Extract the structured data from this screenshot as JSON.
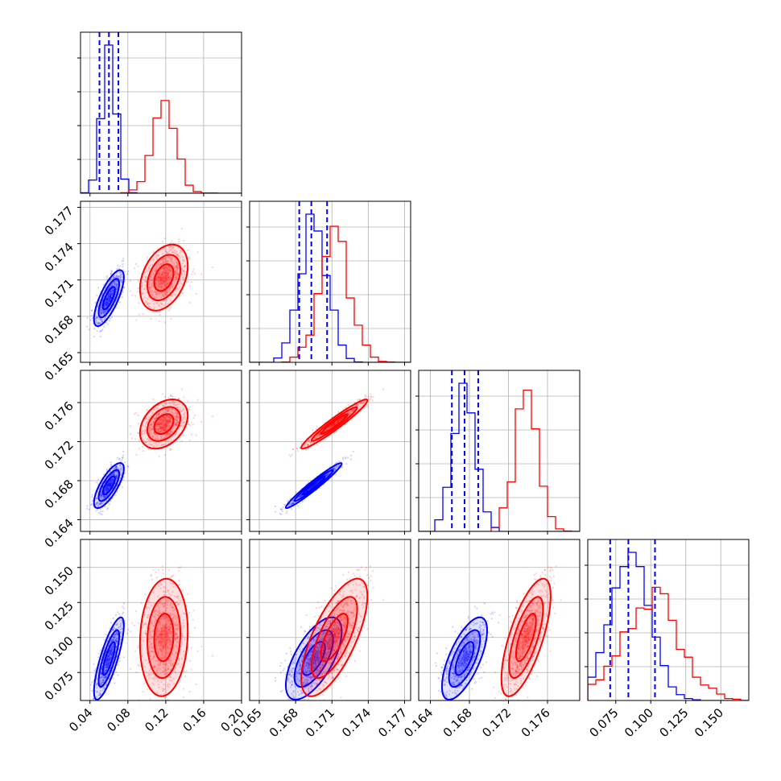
{
  "colors": {
    "series_a": "#0000ff",
    "series_b": "#ff0000",
    "grid": "#b0b0b0",
    "axes": "#000000"
  },
  "chart_data": {
    "type": "corner",
    "grid": true,
    "parameters": [
      {
        "range": [
          0.03,
          0.2
        ],
        "ticks": [
          0.04,
          0.08,
          0.12,
          0.16,
          0.2
        ],
        "tick_labels": [
          "0.04",
          "0.08",
          "0.12",
          "0.16",
          "0.20"
        ]
      },
      {
        "range": [
          0.1642,
          0.1775
        ],
        "ticks": [
          0.165,
          0.168,
          0.171,
          0.174,
          0.177
        ],
        "tick_labels": [
          "0.165",
          "0.168",
          "0.171",
          "0.174",
          "0.177"
        ]
      },
      {
        "range": [
          0.1628,
          0.1793
        ],
        "ticks": [
          0.164,
          0.168,
          0.172,
          0.176
        ],
        "tick_labels": [
          "0.164",
          "0.168",
          "0.172",
          "0.176"
        ]
      },
      {
        "range": [
          0.055,
          0.17
        ],
        "ticks": [
          0.075,
          0.1,
          0.125,
          0.15
        ],
        "tick_labels": [
          "0.075",
          "0.100",
          "0.125",
          "0.150"
        ]
      }
    ],
    "series": [
      {
        "color": "#0000ff",
        "mean": [
          0.06,
          0.1695,
          0.1675,
          0.085
        ],
        "std": [
          0.0075,
          0.0011,
          0.0011,
          0.014
        ],
        "corr": [
          [
            1,
            0.75,
            0.75,
            0.8
          ],
          [
            0.75,
            1,
            0.97,
            0.65
          ],
          [
            0.75,
            0.97,
            1,
            0.68
          ],
          [
            0.8,
            0.65,
            0.68,
            1
          ]
        ],
        "quantiles": [
          [
            0.05,
            0.06,
            0.07
          ],
          [
            0.1683,
            0.1693,
            0.1706
          ],
          [
            0.1662,
            0.1675,
            0.1689
          ],
          [
            0.071,
            0.084,
            0.103
          ]
        ]
      },
      {
        "color": "#ff0000",
        "mean": [
          0.118,
          0.1712,
          0.1738,
          0.1
        ],
        "std": [
          0.012,
          0.0013,
          0.0012,
          0.02
        ],
        "corr": [
          [
            1,
            0.35,
            0.35,
            0.1
          ],
          [
            0.35,
            1,
            0.96,
            0.7
          ],
          [
            0.35,
            0.96,
            1,
            0.7
          ],
          [
            0.1,
            0.7,
            0.7,
            1
          ]
        ],
        "quantiles": []
      }
    ]
  }
}
